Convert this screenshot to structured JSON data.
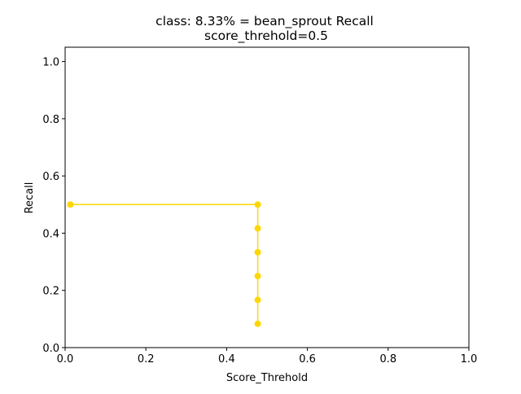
{
  "chart_data": {
    "type": "line",
    "title": "class: 8.33% = bean_sprout Recall",
    "subtitle": "score_threhold=0.5",
    "xlabel": "Score_Threhold",
    "ylabel": "Recall",
    "xlim": [
      0.0,
      1.0
    ],
    "ylim": [
      0.0,
      1.05
    ],
    "xticks": [
      0.0,
      0.2,
      0.4,
      0.6,
      0.8,
      1.0
    ],
    "yticks": [
      0.0,
      0.2,
      0.4,
      0.6,
      0.8,
      1.0
    ],
    "xtick_labels": [
      "0.0",
      "0.2",
      "0.4",
      "0.6",
      "0.8",
      "1.0"
    ],
    "ytick_labels": [
      "0.0",
      "0.2",
      "0.4",
      "0.6",
      "0.8",
      "1.0"
    ],
    "grid": false,
    "series": [
      {
        "color": "#ffd700",
        "x": [
          0.013,
          0.477,
          0.477,
          0.477,
          0.477,
          0.477,
          0.477
        ],
        "y": [
          0.5,
          0.5,
          0.4167,
          0.3333,
          0.25,
          0.1667,
          0.0833
        ]
      }
    ]
  }
}
